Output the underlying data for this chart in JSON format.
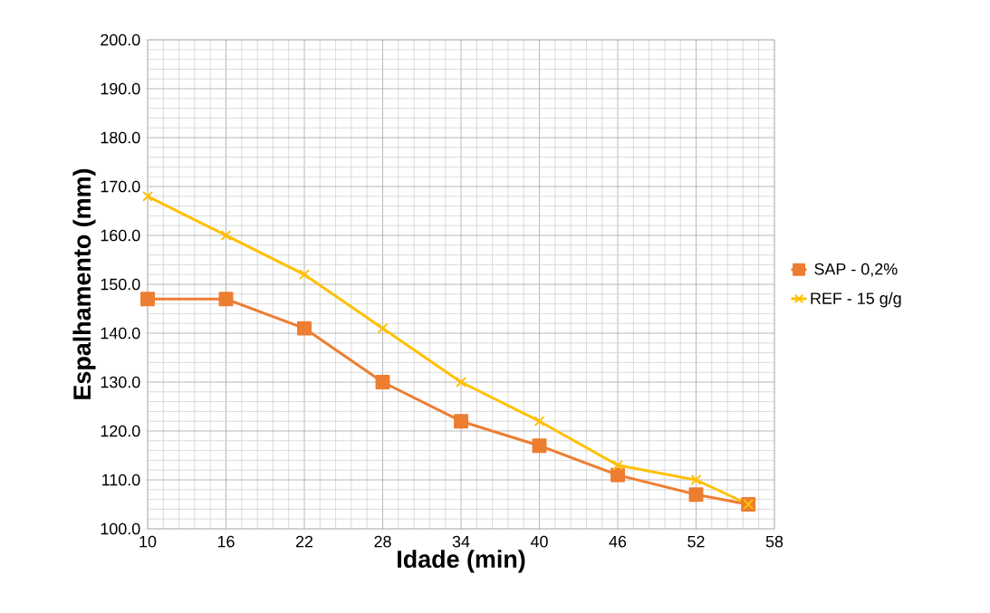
{
  "chart_data": {
    "type": "line",
    "xlabel": "Idade (min)",
    "ylabel": "Espalhamento (mm)",
    "x": [
      10,
      16,
      22,
      28,
      34,
      40,
      46,
      52,
      56
    ],
    "series": [
      {
        "name": "SAP - 0,2%",
        "color": "#ed7d31",
        "marker": "square",
        "values": [
          147,
          147,
          141,
          130,
          122,
          117,
          111,
          107,
          105
        ]
      },
      {
        "name": "REF - 15 g/g",
        "color": "#ffc000",
        "marker": "cross",
        "values": [
          168,
          160,
          152,
          141,
          130,
          122,
          113,
          110,
          105
        ]
      }
    ],
    "xlim": [
      10,
      58
    ],
    "xticks": [
      10,
      16,
      22,
      28,
      34,
      40,
      46,
      52,
      58
    ],
    "ylim": [
      100,
      200
    ],
    "yticks": [
      {
        "value": 100,
        "label": "100.0"
      },
      {
        "value": 110,
        "label": "110.0"
      },
      {
        "value": 120,
        "label": "120.0"
      },
      {
        "value": 130,
        "label": "130.0"
      },
      {
        "value": 140,
        "label": "140.0"
      },
      {
        "value": 150,
        "label": "150.0"
      },
      {
        "value": 160,
        "label": "160.0"
      },
      {
        "value": 170,
        "label": "170.0"
      },
      {
        "value": 180,
        "label": "180.0"
      },
      {
        "value": 190,
        "label": "190.0"
      },
      {
        "value": 200,
        "label": "200.0"
      }
    ],
    "grid": true,
    "legend": "right"
  }
}
